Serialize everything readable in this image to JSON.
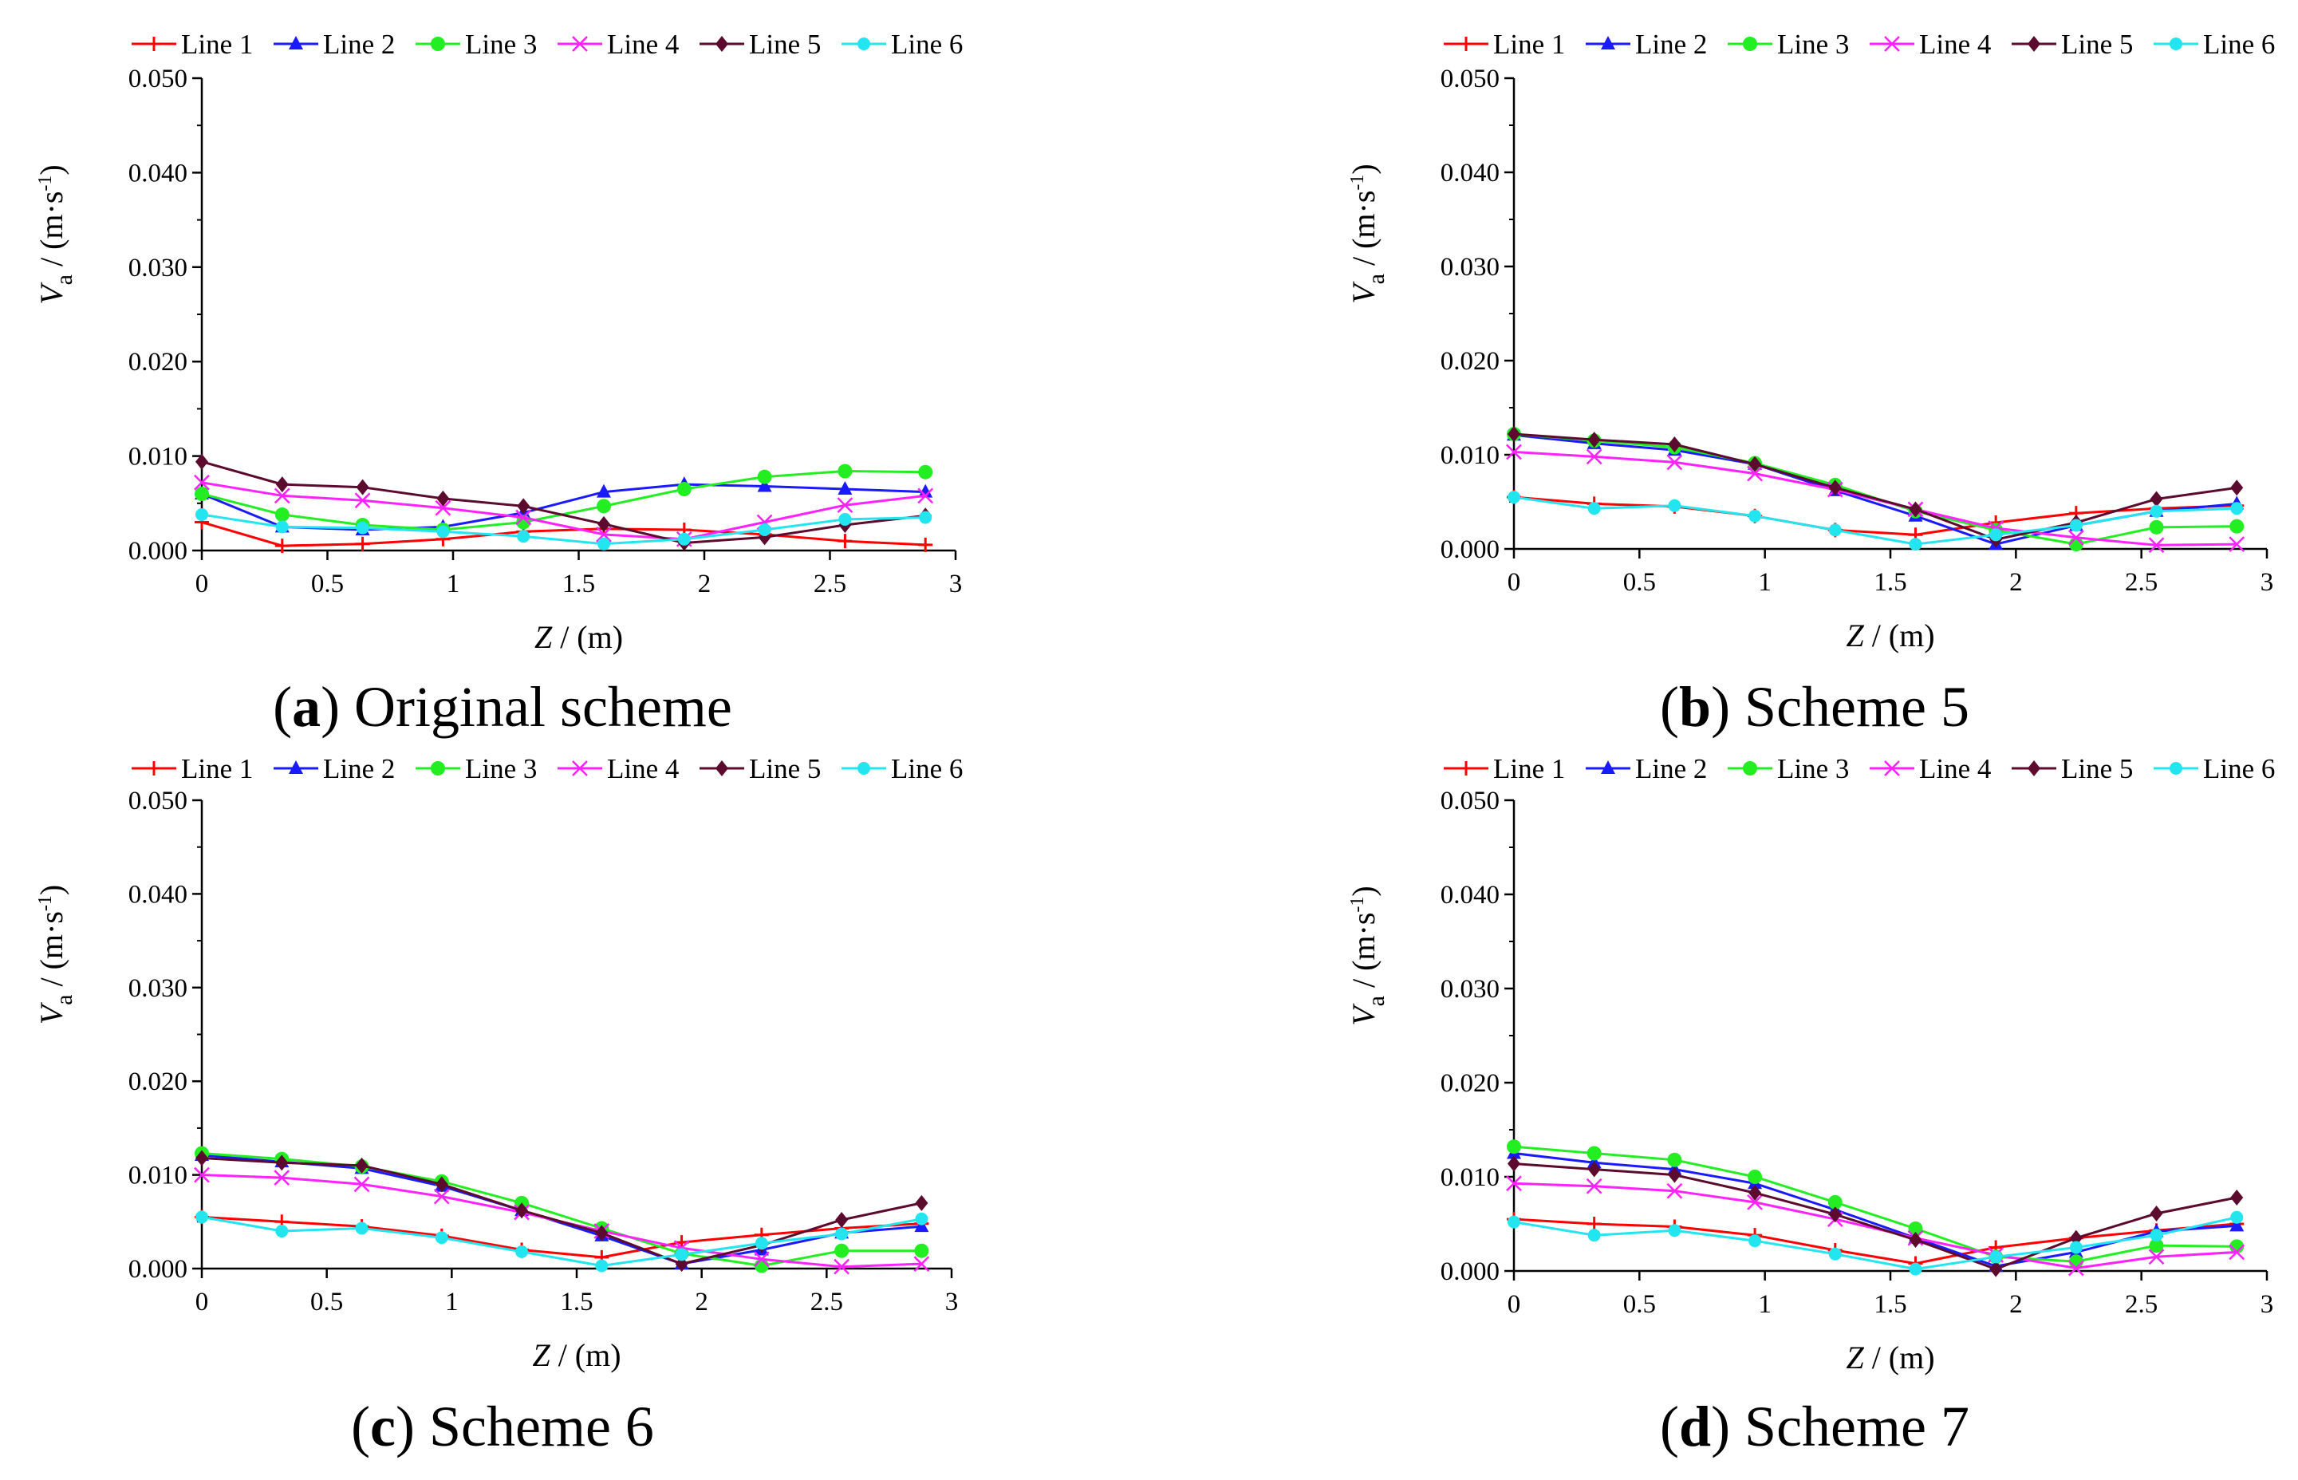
{
  "colors": {
    "line1": "#ff0000",
    "line2": "#1a1aff",
    "line3": "#22ee22",
    "line4": "#ff22ff",
    "line5": "#5c0a2e",
    "line6": "#22e5f0",
    "axis": "#000000"
  },
  "chart_data": [
    {
      "type": "line",
      "caption_letter": "a",
      "caption_text": "Original scheme",
      "xlabel": "Z",
      "xunit": "(m)",
      "ylabel_main": "V",
      "ylabel_sub": "a",
      "yunit_open": "(m·s",
      "yunit_exp": "-1",
      "yunit_close": ")",
      "xlim": [
        0,
        3
      ],
      "ylim": [
        0,
        0.05
      ],
      "x_ticks": [
        "0",
        "0.5",
        "1",
        "1.5",
        "2",
        "2.5",
        "3"
      ],
      "y_ticks": [
        "0.000",
        "0.010",
        "0.020",
        "0.030",
        "0.040",
        "0.050"
      ],
      "legend_position": "top",
      "x": [
        0,
        0.32,
        0.64,
        0.96,
        1.28,
        1.6,
        1.92,
        2.24,
        2.56,
        2.88
      ],
      "series": [
        {
          "name": "Line 1",
          "marker": "plus",
          "values": [
            0.003,
            0.0005,
            0.0007,
            0.0012,
            0.002,
            0.0023,
            0.0022,
            0.0017,
            0.001,
            0.0006
          ]
        },
        {
          "name": "Line 2",
          "marker": "triangle",
          "values": [
            0.006,
            0.0025,
            0.0022,
            0.0025,
            0.004,
            0.0062,
            0.007,
            0.0068,
            0.0065,
            0.0062
          ]
        },
        {
          "name": "Line 3",
          "marker": "circle",
          "values": [
            0.006,
            0.0038,
            0.0027,
            0.0022,
            0.003,
            0.0047,
            0.0065,
            0.0078,
            0.0084,
            0.0083
          ]
        },
        {
          "name": "Line 4",
          "marker": "x",
          "values": [
            0.0072,
            0.0058,
            0.0053,
            0.0045,
            0.0035,
            0.0017,
            0.0012,
            0.003,
            0.0048,
            0.0058
          ]
        },
        {
          "name": "Line 5",
          "marker": "diamond",
          "values": [
            0.0094,
            0.007,
            0.0067,
            0.0055,
            0.0047,
            0.0028,
            0.0008,
            0.0014,
            0.0027,
            0.0037
          ]
        },
        {
          "name": "Line 6",
          "marker": "dot",
          "values": [
            0.0038,
            0.0025,
            0.0024,
            0.002,
            0.0015,
            0.0007,
            0.0012,
            0.0022,
            0.0033,
            0.0035
          ]
        }
      ]
    },
    {
      "type": "line",
      "caption_letter": "b",
      "caption_text": "Scheme 5",
      "xlabel": "Z",
      "xunit": "(m)",
      "ylabel_main": "V",
      "ylabel_sub": "a",
      "yunit_open": "(m·s",
      "yunit_exp": "-1",
      "yunit_close": ")",
      "xlim": [
        0,
        3
      ],
      "ylim": [
        0,
        0.05
      ],
      "x_ticks": [
        "0",
        "0.5",
        "1",
        "1.5",
        "2",
        "2.5",
        "3"
      ],
      "y_ticks": [
        "0.000",
        "0.010",
        "0.020",
        "0.030",
        "0.040",
        "0.050"
      ],
      "legend_position": "top",
      "x": [
        0,
        0.32,
        0.64,
        0.96,
        1.28,
        1.6,
        1.92,
        2.24,
        2.56,
        2.88
      ],
      "series": [
        {
          "name": "Line 1",
          "marker": "plus",
          "values": [
            0.0055,
            0.0048,
            0.0045,
            0.0035,
            0.002,
            0.0015,
            0.0028,
            0.0038,
            0.0043,
            0.0046
          ]
        },
        {
          "name": "Line 2",
          "marker": "triangle",
          "values": [
            0.0121,
            0.0112,
            0.0105,
            0.009,
            0.0062,
            0.0035,
            0.0005,
            0.0025,
            0.004,
            0.0048
          ]
        },
        {
          "name": "Line 3",
          "marker": "circle",
          "values": [
            0.0122,
            0.0115,
            0.0108,
            0.0091,
            0.0068,
            0.004,
            0.002,
            0.0005,
            0.0023,
            0.0024
          ]
        },
        {
          "name": "Line 4",
          "marker": "x",
          "values": [
            0.0103,
            0.0098,
            0.0092,
            0.008,
            0.0063,
            0.0042,
            0.0022,
            0.0012,
            0.0004,
            0.0005
          ]
        },
        {
          "name": "Line 5",
          "marker": "diamond",
          "values": [
            0.0122,
            0.0116,
            0.0111,
            0.009,
            0.0065,
            0.0042,
            0.001,
            0.0028,
            0.0053,
            0.0065
          ]
        },
        {
          "name": "Line 6",
          "marker": "dot",
          "values": [
            0.0055,
            0.0043,
            0.0046,
            0.0035,
            0.002,
            0.0005,
            0.0015,
            0.0025,
            0.004,
            0.0043
          ]
        }
      ]
    },
    {
      "type": "line",
      "caption_letter": "c",
      "caption_text": "Scheme 6",
      "xlabel": "Z",
      "xunit": "(m)",
      "ylabel_main": "V",
      "ylabel_sub": "a",
      "yunit_open": "(m·s",
      "yunit_exp": "-1",
      "yunit_close": ")",
      "xlim": [
        0,
        3
      ],
      "ylim": [
        0,
        0.05
      ],
      "x_ticks": [
        "0",
        "0.5",
        "1",
        "1.5",
        "2",
        "2.5",
        "3"
      ],
      "y_ticks": [
        "0.000",
        "0.010",
        "0.020",
        "0.030",
        "0.040",
        "0.050"
      ],
      "legend_position": "top",
      "x": [
        0,
        0.32,
        0.64,
        0.96,
        1.28,
        1.6,
        1.92,
        2.24,
        2.56,
        2.88
      ],
      "series": [
        {
          "name": "Line 1",
          "marker": "plus",
          "values": [
            0.0055,
            0.005,
            0.0045,
            0.0035,
            0.002,
            0.0012,
            0.0028,
            0.0036,
            0.0043,
            0.0048
          ]
        },
        {
          "name": "Line 2",
          "marker": "triangle",
          "values": [
            0.0121,
            0.0114,
            0.0107,
            0.0088,
            0.0062,
            0.0035,
            0.0005,
            0.002,
            0.0038,
            0.0045
          ]
        },
        {
          "name": "Line 3",
          "marker": "circle",
          "values": [
            0.0123,
            0.0117,
            0.0109,
            0.0093,
            0.007,
            0.0043,
            0.0016,
            0.0003,
            0.0019,
            0.0019
          ]
        },
        {
          "name": "Line 4",
          "marker": "x",
          "values": [
            0.01,
            0.0097,
            0.009,
            0.0077,
            0.006,
            0.004,
            0.0022,
            0.001,
            0.0002,
            0.0005
          ]
        },
        {
          "name": "Line 5",
          "marker": "diamond",
          "values": [
            0.0118,
            0.0113,
            0.011,
            0.009,
            0.0062,
            0.0038,
            0.0005,
            0.0025,
            0.0052,
            0.007
          ]
        },
        {
          "name": "Line 6",
          "marker": "dot",
          "values": [
            0.0055,
            0.004,
            0.0043,
            0.0033,
            0.0018,
            0.0003,
            0.0015,
            0.0027,
            0.0037,
            0.0053
          ]
        }
      ]
    },
    {
      "type": "line",
      "caption_letter": "d",
      "caption_text": "Scheme 7",
      "xlabel": "Z",
      "xunit": "(m)",
      "ylabel_main": "V",
      "ylabel_sub": "a",
      "yunit_open": "(m·s",
      "yunit_exp": "-1",
      "yunit_close": ")",
      "xlim": [
        0,
        3
      ],
      "ylim": [
        0,
        0.05
      ],
      "x_ticks": [
        "0",
        "0.5",
        "1",
        "1.5",
        "2",
        "2.5",
        "3"
      ],
      "y_ticks": [
        "0.000",
        "0.010",
        "0.020",
        "0.030",
        "0.040",
        "0.050"
      ],
      "legend_position": "top",
      "x": [
        0,
        0.32,
        0.64,
        0.96,
        1.28,
        1.6,
        1.92,
        2.24,
        2.56,
        2.88
      ],
      "series": [
        {
          "name": "Line 1",
          "marker": "plus",
          "values": [
            0.0055,
            0.005,
            0.0047,
            0.0038,
            0.0022,
            0.0008,
            0.0025,
            0.0035,
            0.0043,
            0.005
          ]
        },
        {
          "name": "Line 2",
          "marker": "triangle",
          "values": [
            0.0125,
            0.0115,
            0.0108,
            0.0093,
            0.0065,
            0.0035,
            0.0005,
            0.002,
            0.0042,
            0.0048
          ]
        },
        {
          "name": "Line 3",
          "marker": "circle",
          "values": [
            0.0132,
            0.0125,
            0.0118,
            0.01,
            0.0073,
            0.0045,
            0.0015,
            0.001,
            0.0027,
            0.0026
          ]
        },
        {
          "name": "Line 4",
          "marker": "x",
          "values": [
            0.0093,
            0.009,
            0.0085,
            0.0073,
            0.0055,
            0.0035,
            0.0017,
            0.0003,
            0.0015,
            0.002
          ]
        },
        {
          "name": "Line 5",
          "marker": "diamond",
          "values": [
            0.0114,
            0.0108,
            0.0102,
            0.0083,
            0.006,
            0.0033,
            0.0002,
            0.0035,
            0.0061,
            0.0078
          ]
        },
        {
          "name": "Line 6",
          "marker": "dot",
          "values": [
            0.0052,
            0.0038,
            0.0043,
            0.0032,
            0.0018,
            0.0002,
            0.0015,
            0.0025,
            0.0038,
            0.0057
          ]
        }
      ]
    }
  ]
}
